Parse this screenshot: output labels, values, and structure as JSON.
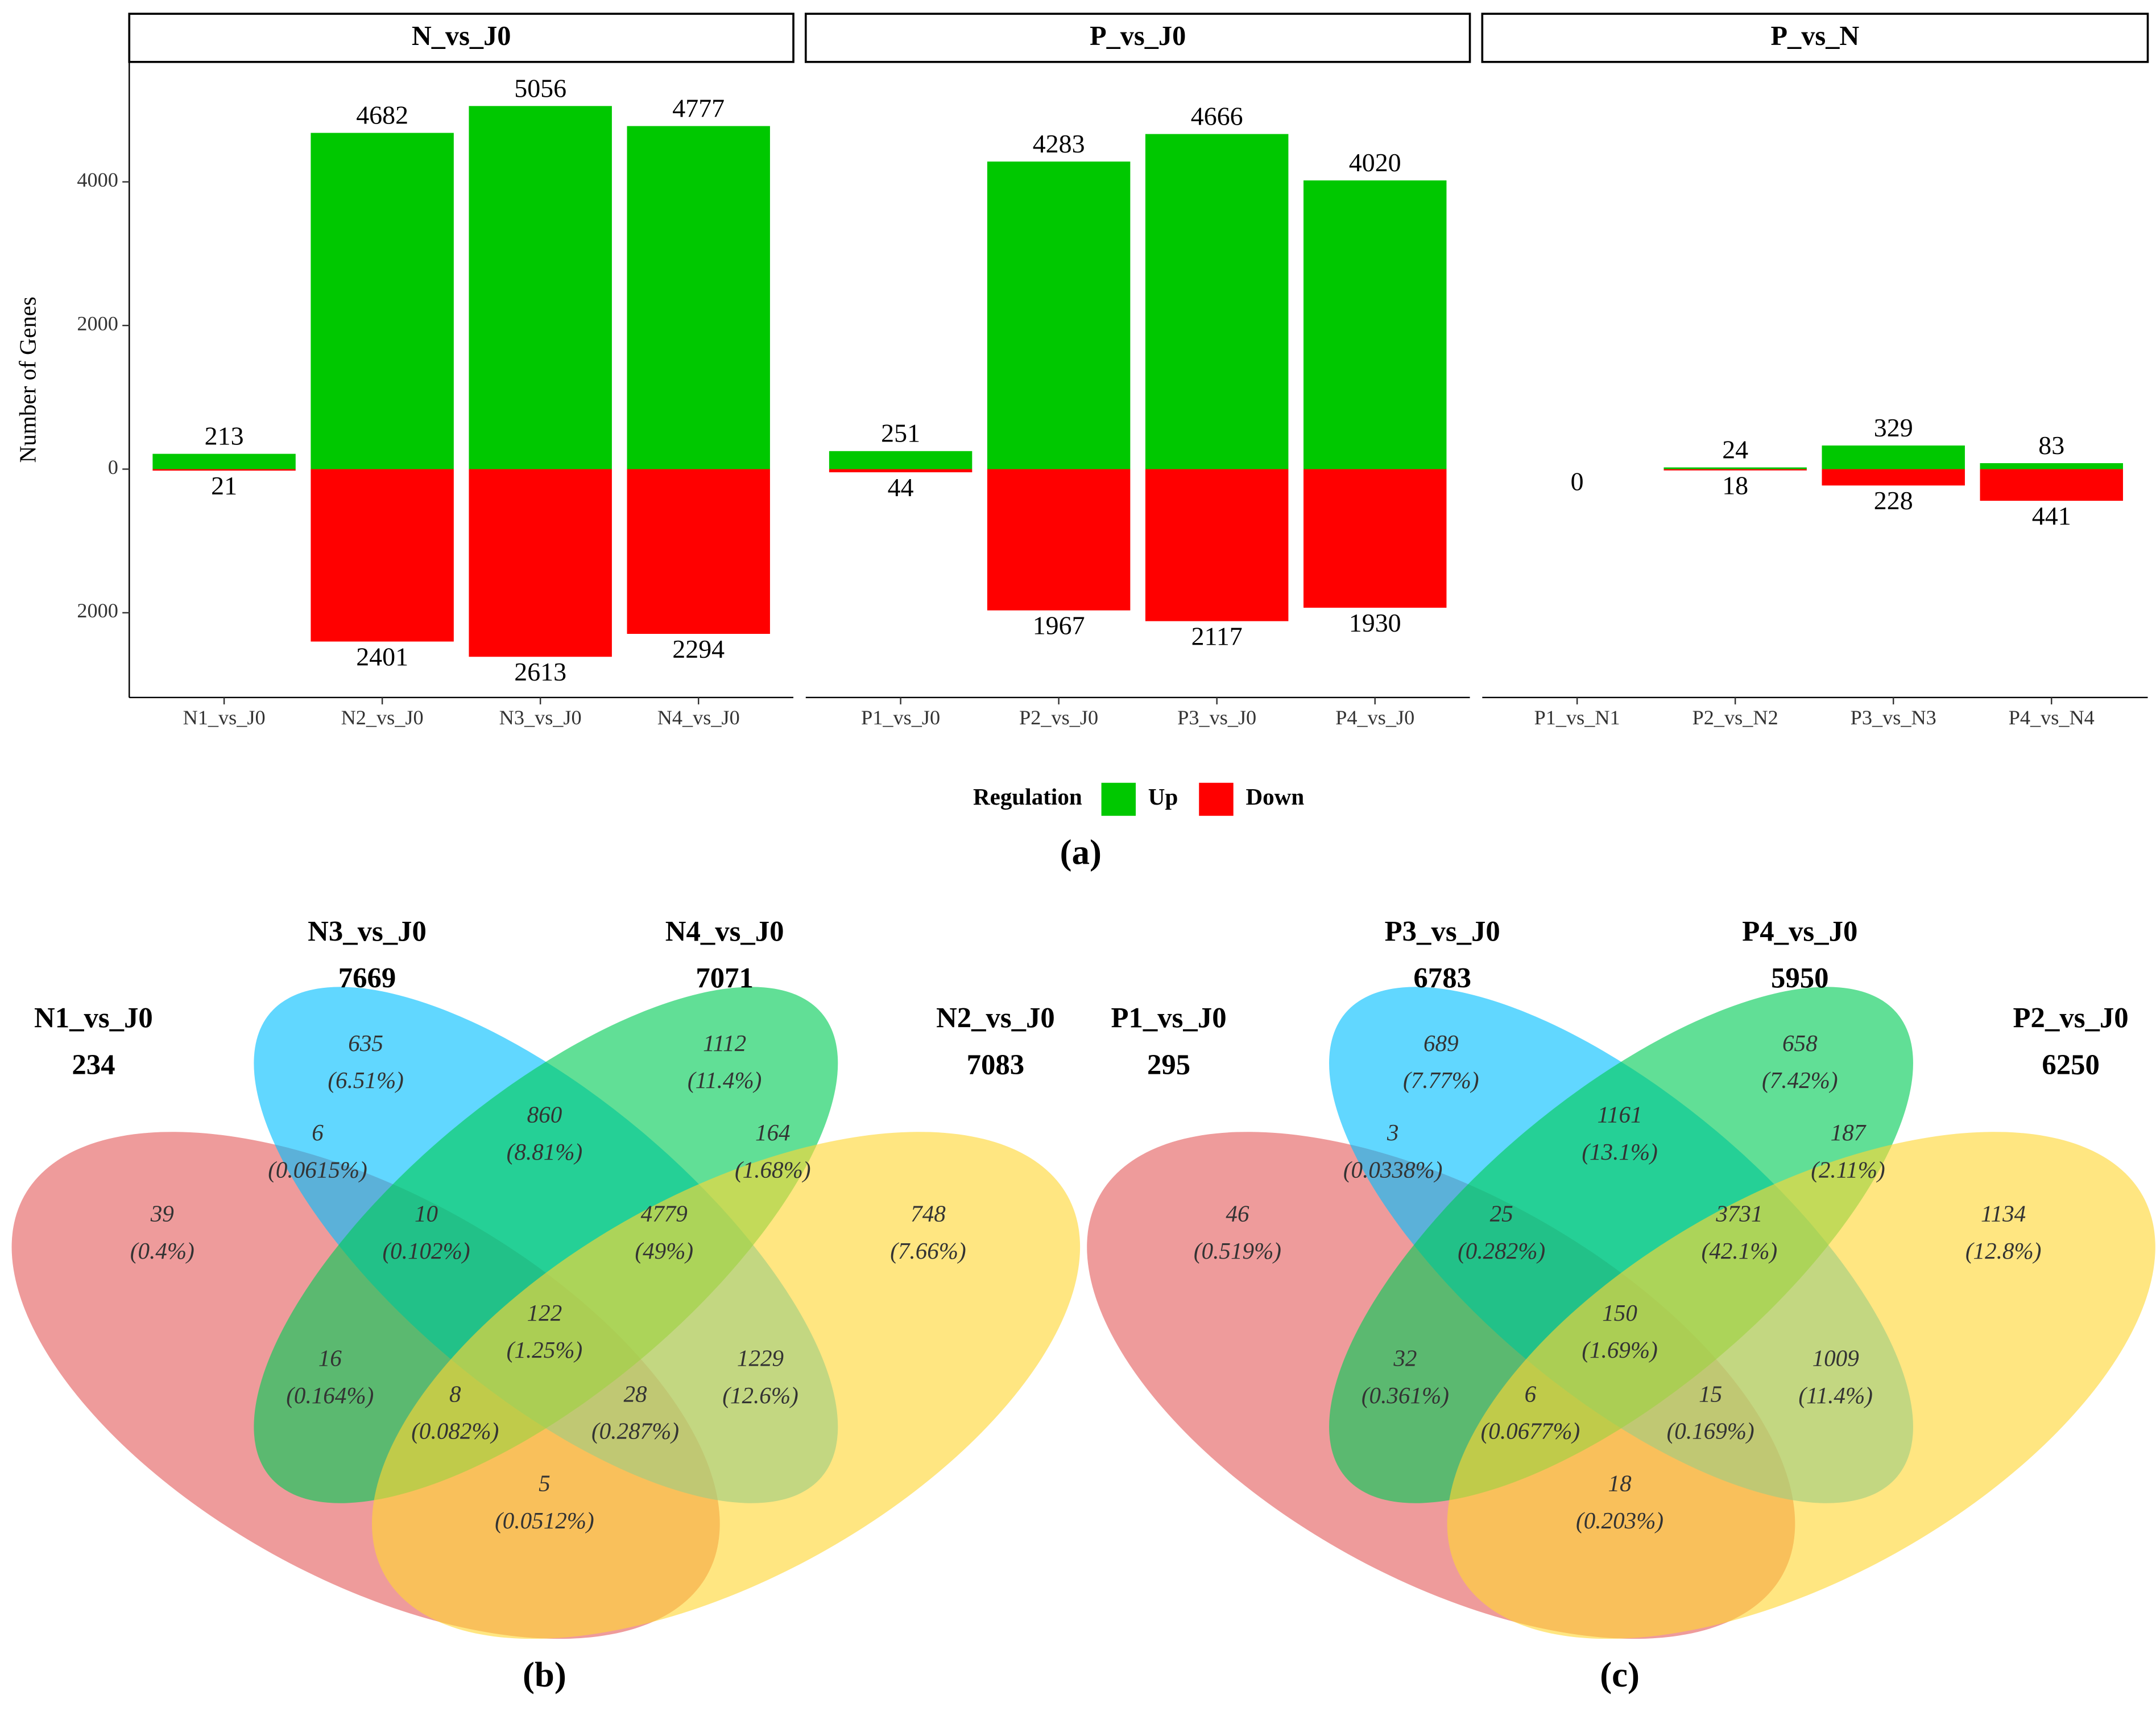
{
  "chart_data": [
    {
      "type": "bar",
      "label": "(a)",
      "ylabel": "Number of Genes",
      "legend_title": "Regulation",
      "facets": [
        "N_vs_J0",
        "P_vs_J0",
        "P_vs_N"
      ],
      "categories": [
        [
          "N1_vs_J0",
          "N2_vs_J0",
          "N3_vs_J0",
          "N4_vs_J0"
        ],
        [
          "P1_vs_J0",
          "P2_vs_J0",
          "P3_vs_J0",
          "P4_vs_J0"
        ],
        [
          "P1_vs_N1",
          "P2_vs_N2",
          "P3_vs_N3",
          "P4_vs_N4"
        ]
      ],
      "series": [
        {
          "name": "Up",
          "color": "#00c800",
          "values": [
            [
              213,
              4682,
              5056,
              4777
            ],
            [
              251,
              4283,
              4666,
              4020
            ],
            [
              0,
              24,
              329,
              83
            ]
          ]
        },
        {
          "name": "Down",
          "color": "#ff0000",
          "values": [
            [
              -21,
              -2401,
              -2613,
              -2294
            ],
            [
              -44,
              -1967,
              -2117,
              -1930
            ],
            [
              null,
              -18,
              -228,
              -441
            ]
          ],
          "value_labels": [
            [
              "21",
              "2401",
              "2613",
              "2294"
            ],
            [
              "44",
              "1967",
              "2117",
              "1930"
            ],
            [
              null,
              "18",
              "228",
              "441"
            ]
          ]
        }
      ],
      "ylim": [
        -3180,
        5670
      ],
      "yticks": [
        {
          "value": -2000,
          "label": "2000"
        },
        0,
        2000,
        4000
      ]
    },
    {
      "type": "venn",
      "label": "(b)",
      "sets": [
        {
          "name": "N1_vs_J0",
          "total": 234,
          "color": "#e35d5d"
        },
        {
          "name": "N3_vs_J0",
          "total": 7669,
          "color": "#00bfff"
        },
        {
          "name": "N4_vs_J0",
          "total": 7071,
          "color": "#00cc55"
        },
        {
          "name": "N2_vs_J0",
          "total": 7083,
          "color": "#ffd633"
        }
      ],
      "regions": [
        {
          "count": 635,
          "percent": "(6.51%)"
        },
        {
          "count": 1112,
          "percent": "(11.4%)"
        },
        {
          "count": 860,
          "percent": "(8.81%)"
        },
        {
          "count": 6,
          "percent": "(0.0615%)"
        },
        {
          "count": 164,
          "percent": "(1.68%)"
        },
        {
          "count": 39,
          "percent": "(0.4%)"
        },
        {
          "count": 10,
          "percent": "(0.102%)"
        },
        {
          "count": 4779,
          "percent": "(49%)"
        },
        {
          "count": 748,
          "percent": "(7.66%)"
        },
        {
          "count": 122,
          "percent": "(1.25%)"
        },
        {
          "count": 16,
          "percent": "(0.164%)"
        },
        {
          "count": 1229,
          "percent": "(12.6%)"
        },
        {
          "count": 8,
          "percent": "(0.082%)"
        },
        {
          "count": 28,
          "percent": "(0.287%)"
        },
        {
          "count": 5,
          "percent": "(0.0512%)"
        }
      ]
    },
    {
      "type": "venn",
      "label": "(c)",
      "sets": [
        {
          "name": "P1_vs_J0",
          "total": 295,
          "color": "#e35d5d"
        },
        {
          "name": "P3_vs_J0",
          "total": 6783,
          "color": "#00bfff"
        },
        {
          "name": "P4_vs_J0",
          "total": 5950,
          "color": "#00cc55"
        },
        {
          "name": "P2_vs_J0",
          "total": 6250,
          "color": "#ffd633"
        }
      ],
      "regions": [
        {
          "count": 689,
          "percent": "(7.77%)"
        },
        {
          "count": 658,
          "percent": "(7.42%)"
        },
        {
          "count": 1161,
          "percent": "(13.1%)"
        },
        {
          "count": 3,
          "percent": "(0.0338%)"
        },
        {
          "count": 187,
          "percent": "(2.11%)"
        },
        {
          "count": 46,
          "percent": "(0.519%)"
        },
        {
          "count": 25,
          "percent": "(0.282%)"
        },
        {
          "count": 3731,
          "percent": "(42.1%)"
        },
        {
          "count": 1134,
          "percent": "(12.8%)"
        },
        {
          "count": 150,
          "percent": "(1.69%)"
        },
        {
          "count": 32,
          "percent": "(0.361%)"
        },
        {
          "count": 1009,
          "percent": "(11.4%)"
        },
        {
          "count": 6,
          "percent": "(0.0677%)"
        },
        {
          "count": 15,
          "percent": "(0.169%)"
        },
        {
          "count": 18,
          "percent": "(0.203%)"
        }
      ]
    }
  ]
}
